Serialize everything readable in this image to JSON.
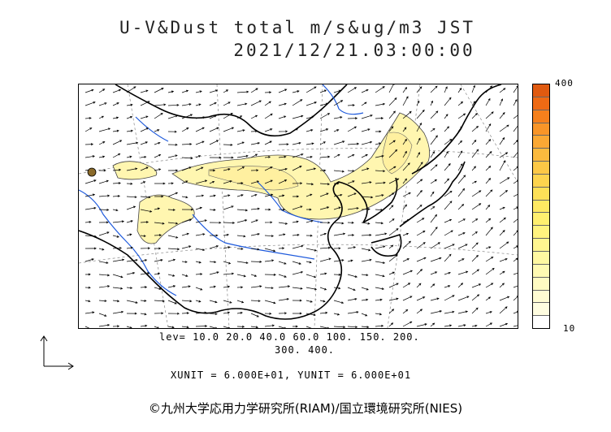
{
  "header": {
    "title_line1": "U-V&Dust total m/s&ug/m3 JST",
    "title_line2": "2021/12/21.03:00:00"
  },
  "legend": {
    "max_label": "400",
    "min_label": "10",
    "colors": [
      "#e05a10",
      "#ee6a14",
      "#f5801c",
      "#f89528",
      "#faa834",
      "#fbba3e",
      "#fcc846",
      "#fdd44e",
      "#fde057",
      "#fee962",
      "#ffef6f",
      "#fff37f",
      "#fff690",
      "#fff8a1",
      "#fffab2",
      "#fffbc2",
      "#fffcd2",
      "#fffde0",
      "#ffffff"
    ]
  },
  "levels": {
    "line1": "lev= 10.0 20.0 40.0 60.0 100. 150. 200.",
    "line2": "300. 400."
  },
  "units": "XUNIT = 6.000E+01, YUNIT = 6.000E+01",
  "footer": {
    "copyright": "©九州大学応用力学研究所(RIAM)/国立環境研究所(NIES)"
  },
  "map_colors": {
    "coast": "#000000",
    "river": "#1e5adc",
    "dust": "#fff6b0",
    "grid": "#888888",
    "vector": "#000000"
  }
}
